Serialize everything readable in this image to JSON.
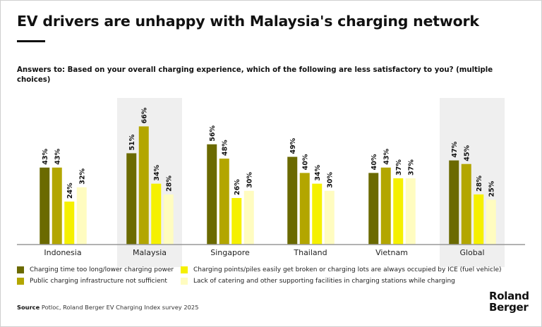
{
  "title": "EV drivers are unhappy with Malaysia's charging network",
  "question": "Answers to: Based on your overall charging experience, which of the following are less satisfactory to you? (multiple choices)",
  "source_label": "Source",
  "source_text": "Potloc, Roland Berger EV Charging Index survey 2025",
  "logo": "Roland Berger",
  "chart_data": {
    "type": "bar",
    "title": "EV drivers are unhappy with Malaysia's charging network",
    "xlabel": "",
    "ylabel": "",
    "ylim": [
      0,
      70
    ],
    "grid": false,
    "legend_placement": "bottom",
    "categories": [
      "Indonesia",
      "Malaysia",
      "Singapore",
      "Thailand",
      "Vietnam",
      "Global"
    ],
    "highlighted": [
      "Malaysia",
      "Global"
    ],
    "series": [
      {
        "name": "Charging time too long/lower charging power",
        "color": "#6b6a00",
        "values": [
          43,
          51,
          56,
          49,
          40,
          47
        ]
      },
      {
        "name": "Public charging infrastructure not sufficient",
        "color": "#b3a600",
        "values": [
          43,
          66,
          48,
          40,
          43,
          45
        ]
      },
      {
        "name": "Charging points/piles easily get broken or charging lots are always occupied by ICE (fuel vehicle)",
        "color": "#f5f000",
        "values": [
          24,
          34,
          26,
          34,
          37,
          28
        ]
      },
      {
        "name": "Lack of catering and other supporting facilities in charging stations while charging",
        "color": "#fffcc0",
        "values": [
          32,
          28,
          30,
          30,
          37,
          25
        ]
      }
    ],
    "value_suffix": "%"
  }
}
